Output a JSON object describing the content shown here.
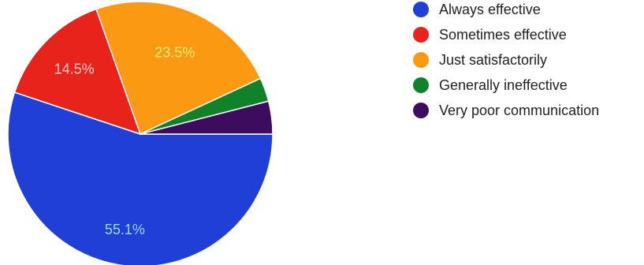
{
  "chart_data": {
    "type": "pie",
    "categories": [
      "Always effective",
      "Sometimes effective",
      "Just satisfactorily",
      "Generally ineffective",
      "Very poor communication"
    ],
    "values": [
      55.1,
      14.5,
      23.5,
      2.9,
      4.0
    ],
    "data_labels": [
      "55.1%",
      "14.5%",
      "23.5%",
      "",
      ""
    ],
    "colors": [
      "#1f3fd6",
      "#e8231c",
      "#fb9a12",
      "#12822a",
      "#3d0c5e"
    ],
    "legend_placement": "right",
    "title": ""
  },
  "legend": {
    "items": [
      {
        "label": "Always effective",
        "color": "#1f3fd6"
      },
      {
        "label": "Sometimes effective",
        "color": "#e8231c"
      },
      {
        "label": "Just satisfactorily",
        "color": "#fb9a12"
      },
      {
        "label": "Generally ineffective",
        "color": "#12822a"
      },
      {
        "label": "Very poor communication",
        "color": "#3d0c5e"
      }
    ]
  }
}
